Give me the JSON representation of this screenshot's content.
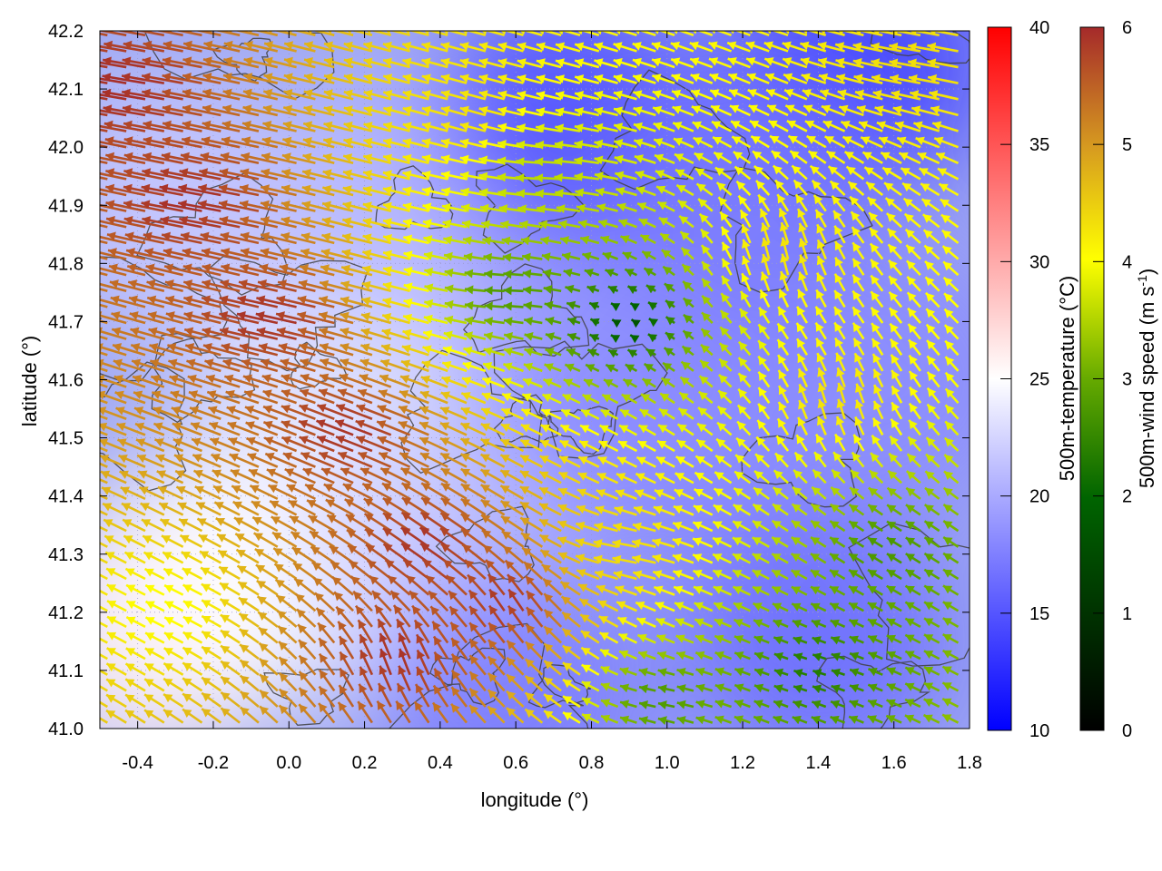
{
  "chart_data": {
    "type": "heatmap",
    "xlabel": "longitude (°)",
    "ylabel": "latitude (°)",
    "xlim": [
      -0.5,
      1.8
    ],
    "ylim": [
      41.0,
      42.2
    ],
    "x_ticks": [
      "-0.4",
      "-0.2",
      "0.0",
      "0.2",
      "0.4",
      "0.6",
      "0.8",
      "1.0",
      "1.2",
      "1.4",
      "1.6",
      "1.8"
    ],
    "x_tick_values": [
      -0.4,
      -0.2,
      0.0,
      0.2,
      0.4,
      0.6,
      0.8,
      1.0,
      1.2,
      1.4,
      1.6,
      1.8
    ],
    "y_ticks": [
      "41.0",
      "41.1",
      "41.2",
      "41.3",
      "41.4",
      "41.5",
      "41.6",
      "41.7",
      "41.8",
      "41.9",
      "42.0",
      "42.1",
      "42.2"
    ],
    "y_tick_values": [
      41.0,
      41.1,
      41.2,
      41.3,
      41.4,
      41.5,
      41.6,
      41.7,
      41.8,
      41.9,
      42.0,
      42.1,
      42.2
    ],
    "temperature_colorbar": {
      "label": "500m-temperature (°C)",
      "range": [
        10,
        40
      ],
      "ticks": [
        "10",
        "15",
        "20",
        "25",
        "30",
        "35",
        "40"
      ],
      "tick_values": [
        10,
        15,
        20,
        25,
        30,
        35,
        40
      ],
      "colors": [
        "#0000ff",
        "#ffffff",
        "#ff0000"
      ]
    },
    "windspeed_colorbar": {
      "label": "500m-wind speed (m s",
      "label_sup": "-1",
      "label_end": ")",
      "range": [
        0,
        6
      ],
      "ticks": [
        "0",
        "1",
        "2",
        "3",
        "4",
        "5",
        "6"
      ],
      "tick_values": [
        0,
        1,
        2,
        3,
        4,
        5,
        6
      ],
      "colors": [
        "#000000",
        "#006400",
        "#66aa00",
        "#ffff00",
        "#d69a20",
        "#a52a2a"
      ]
    },
    "temperature_field": [
      {
        "lon": -0.4,
        "lat": 41.15,
        "value": 26
      },
      {
        "lon": -0.2,
        "lat": 41.25,
        "value": 25.5
      },
      {
        "lon": 0.0,
        "lat": 41.3,
        "value": 25
      },
      {
        "lon": 0.1,
        "lat": 41.6,
        "value": 24
      },
      {
        "lon": -0.3,
        "lat": 41.9,
        "value": 22
      },
      {
        "lon": 0.3,
        "lat": 41.9,
        "value": 21
      },
      {
        "lon": 0.4,
        "lat": 41.3,
        "value": 22
      },
      {
        "lon": 0.6,
        "lat": 41.05,
        "value": 17
      },
      {
        "lon": 0.8,
        "lat": 41.6,
        "value": 19
      },
      {
        "lon": 1.0,
        "lat": 41.5,
        "value": 18
      },
      {
        "lon": 1.4,
        "lat": 41.15,
        "value": 16
      },
      {
        "lon": 1.6,
        "lat": 41.6,
        "value": 18
      },
      {
        "lon": 1.5,
        "lat": 42.15,
        "value": 13
      },
      {
        "lon": 0.75,
        "lat": 42.05,
        "value": 14
      },
      {
        "lon": 1.2,
        "lat": 41.9,
        "value": 17
      }
    ],
    "wind_field": [
      {
        "lon": -0.4,
        "lat": 42.1,
        "u": -4.8,
        "v": 0.8,
        "speed": 6
      },
      {
        "lon": -0.2,
        "lat": 41.9,
        "u": -4.8,
        "v": 0.9,
        "speed": 6
      },
      {
        "lon": 0.0,
        "lat": 41.7,
        "u": -4.6,
        "v": 1.0,
        "speed": 6
      },
      {
        "lon": 0.2,
        "lat": 41.5,
        "u": -4.2,
        "v": 1.6,
        "speed": 6
      },
      {
        "lon": 0.4,
        "lat": 41.3,
        "u": -3.2,
        "v": 2.2,
        "speed": 6
      },
      {
        "lon": 0.6,
        "lat": 41.2,
        "u": -1.5,
        "v": 2.5,
        "speed": 6
      },
      {
        "lon": 0.3,
        "lat": 41.1,
        "u": -1.0,
        "v": 3.0,
        "speed": 6
      },
      {
        "lon": -0.3,
        "lat": 41.2,
        "u": -2.0,
        "v": 1.0,
        "speed": 3.5
      },
      {
        "lon": 0.5,
        "lat": 42.05,
        "u": -2.8,
        "v": 0.8,
        "speed": 4
      },
      {
        "lon": 0.7,
        "lat": 41.95,
        "u": -3.0,
        "v": 0.1,
        "speed": 3
      },
      {
        "lon": 0.6,
        "lat": 41.75,
        "u": -2.2,
        "v": 0.0,
        "speed": 2
      },
      {
        "lon": 0.9,
        "lat": 41.7,
        "u": -0.4,
        "v": 0.3,
        "speed": 0.7
      },
      {
        "lon": 1.3,
        "lat": 41.8,
        "u": -0.5,
        "v": 2.5,
        "speed": 4
      },
      {
        "lon": 1.45,
        "lat": 41.55,
        "u": -0.6,
        "v": 2.3,
        "speed": 4
      },
      {
        "lon": 1.6,
        "lat": 41.3,
        "u": -1.6,
        "v": 1.0,
        "speed": 2
      },
      {
        "lon": 1.4,
        "lat": 41.1,
        "u": -1.4,
        "v": 0.4,
        "speed": 1.5
      },
      {
        "lon": 1.7,
        "lat": 42.15,
        "u": -3.5,
        "v": 0.6,
        "speed": 4
      },
      {
        "lon": 0.9,
        "lat": 41.3,
        "u": -2.8,
        "v": 0.4,
        "speed": 4
      },
      {
        "lon": 1.0,
        "lat": 41.05,
        "u": -1.8,
        "v": 0.3,
        "speed": 2
      }
    ]
  }
}
